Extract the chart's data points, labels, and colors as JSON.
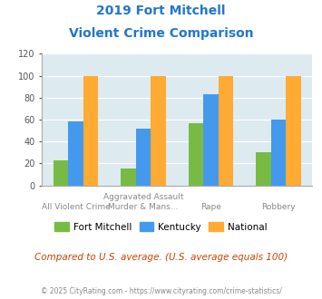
{
  "title_line1": "2019 Fort Mitchell",
  "title_line2": "Violent Crime Comparison",
  "cat_top_labels": [
    "",
    "Aggravated Assault",
    "",
    ""
  ],
  "cat_bot_labels": [
    "All Violent Crime",
    "Murder & Mans...",
    "Rape",
    "Robbery"
  ],
  "fort_mitchell": [
    23,
    15,
    57,
    30
  ],
  "kentucky": [
    58,
    52,
    83,
    60
  ],
  "national": [
    100,
    100,
    100,
    100
  ],
  "color_fm": "#77bb44",
  "color_ky": "#4499ee",
  "color_nat": "#ffaa33",
  "bg_color": "#ddeaf0",
  "ylim": [
    0,
    120
  ],
  "yticks": [
    0,
    20,
    40,
    60,
    80,
    100,
    120
  ],
  "footer_note": "Compared to U.S. average. (U.S. average equals 100)",
  "copyright": "© 2025 CityRating.com - https://www.cityrating.com/crime-statistics/",
  "title_color": "#2277cc",
  "footer_color": "#cc4400",
  "copyright_color": "#888888"
}
